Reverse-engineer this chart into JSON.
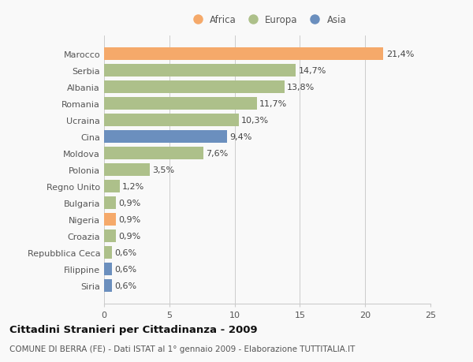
{
  "countries": [
    "Siria",
    "Filippine",
    "Repubblica Ceca",
    "Croazia",
    "Nigeria",
    "Bulgaria",
    "Regno Unito",
    "Polonia",
    "Moldova",
    "Cina",
    "Ucraina",
    "Romania",
    "Albania",
    "Serbia",
    "Marocco"
  ],
  "values": [
    0.6,
    0.6,
    0.6,
    0.9,
    0.9,
    0.9,
    1.2,
    3.5,
    7.6,
    9.4,
    10.3,
    11.7,
    13.8,
    14.7,
    21.4
  ],
  "labels": [
    "0,6%",
    "0,6%",
    "0,6%",
    "0,9%",
    "0,9%",
    "0,9%",
    "1,2%",
    "3,5%",
    "7,6%",
    "9,4%",
    "10,3%",
    "11,7%",
    "13,8%",
    "14,7%",
    "21,4%"
  ],
  "colors": [
    "#6b8fbe",
    "#6b8fbe",
    "#adc08a",
    "#adc08a",
    "#f5a96a",
    "#adc08a",
    "#adc08a",
    "#adc08a",
    "#adc08a",
    "#6b8fbe",
    "#adc08a",
    "#adc08a",
    "#adc08a",
    "#adc08a",
    "#f5a96a"
  ],
  "legend_labels": [
    "Africa",
    "Europa",
    "Asia"
  ],
  "legend_colors": [
    "#f5a96a",
    "#adc08a",
    "#6b8fbe"
  ],
  "xlim": [
    0,
    25
  ],
  "xticks": [
    0,
    5,
    10,
    15,
    20,
    25
  ],
  "title": "Cittadini Stranieri per Cittadinanza - 2009",
  "subtitle": "COMUNE DI BERRA (FE) - Dati ISTAT al 1° gennaio 2009 - Elaborazione TUTTITALIA.IT",
  "background_color": "#f9f9f9",
  "bar_height": 0.75,
  "grid_color": "#cccccc",
  "label_fontsize": 8,
  "tick_fontsize": 8,
  "title_fontsize": 9.5,
  "subtitle_fontsize": 7.5
}
